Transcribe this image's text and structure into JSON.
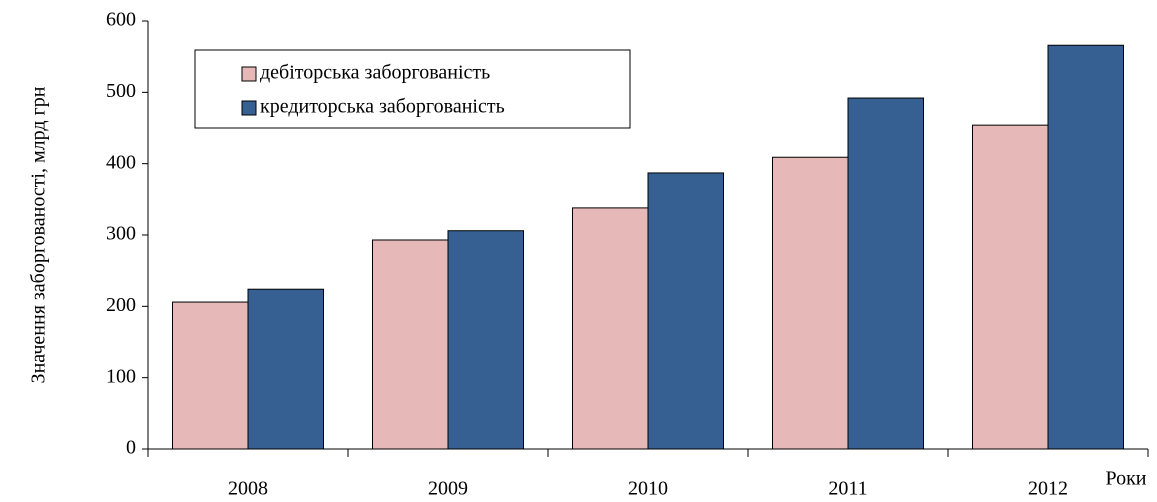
{
  "chart_data": {
    "type": "bar",
    "y_label": "Значення заборгованості, млрд грн",
    "x_label": "Роки",
    "categories": [
      "2008",
      "2009",
      "2010",
      "2011",
      "2012"
    ],
    "series": [
      {
        "name": "дебіторська заборгованість",
        "color": "#e6b9b8",
        "values": [
          206,
          293,
          338,
          409,
          454
        ]
      },
      {
        "name": "кредиторська заборгованість",
        "color": "#376092",
        "values": [
          224,
          306,
          387,
          492,
          566
        ]
      }
    ],
    "ylim": [
      0,
      600
    ],
    "yticks": [
      0,
      100,
      200,
      300,
      400,
      500,
      600
    ],
    "grid": false,
    "legend": "upper left"
  }
}
